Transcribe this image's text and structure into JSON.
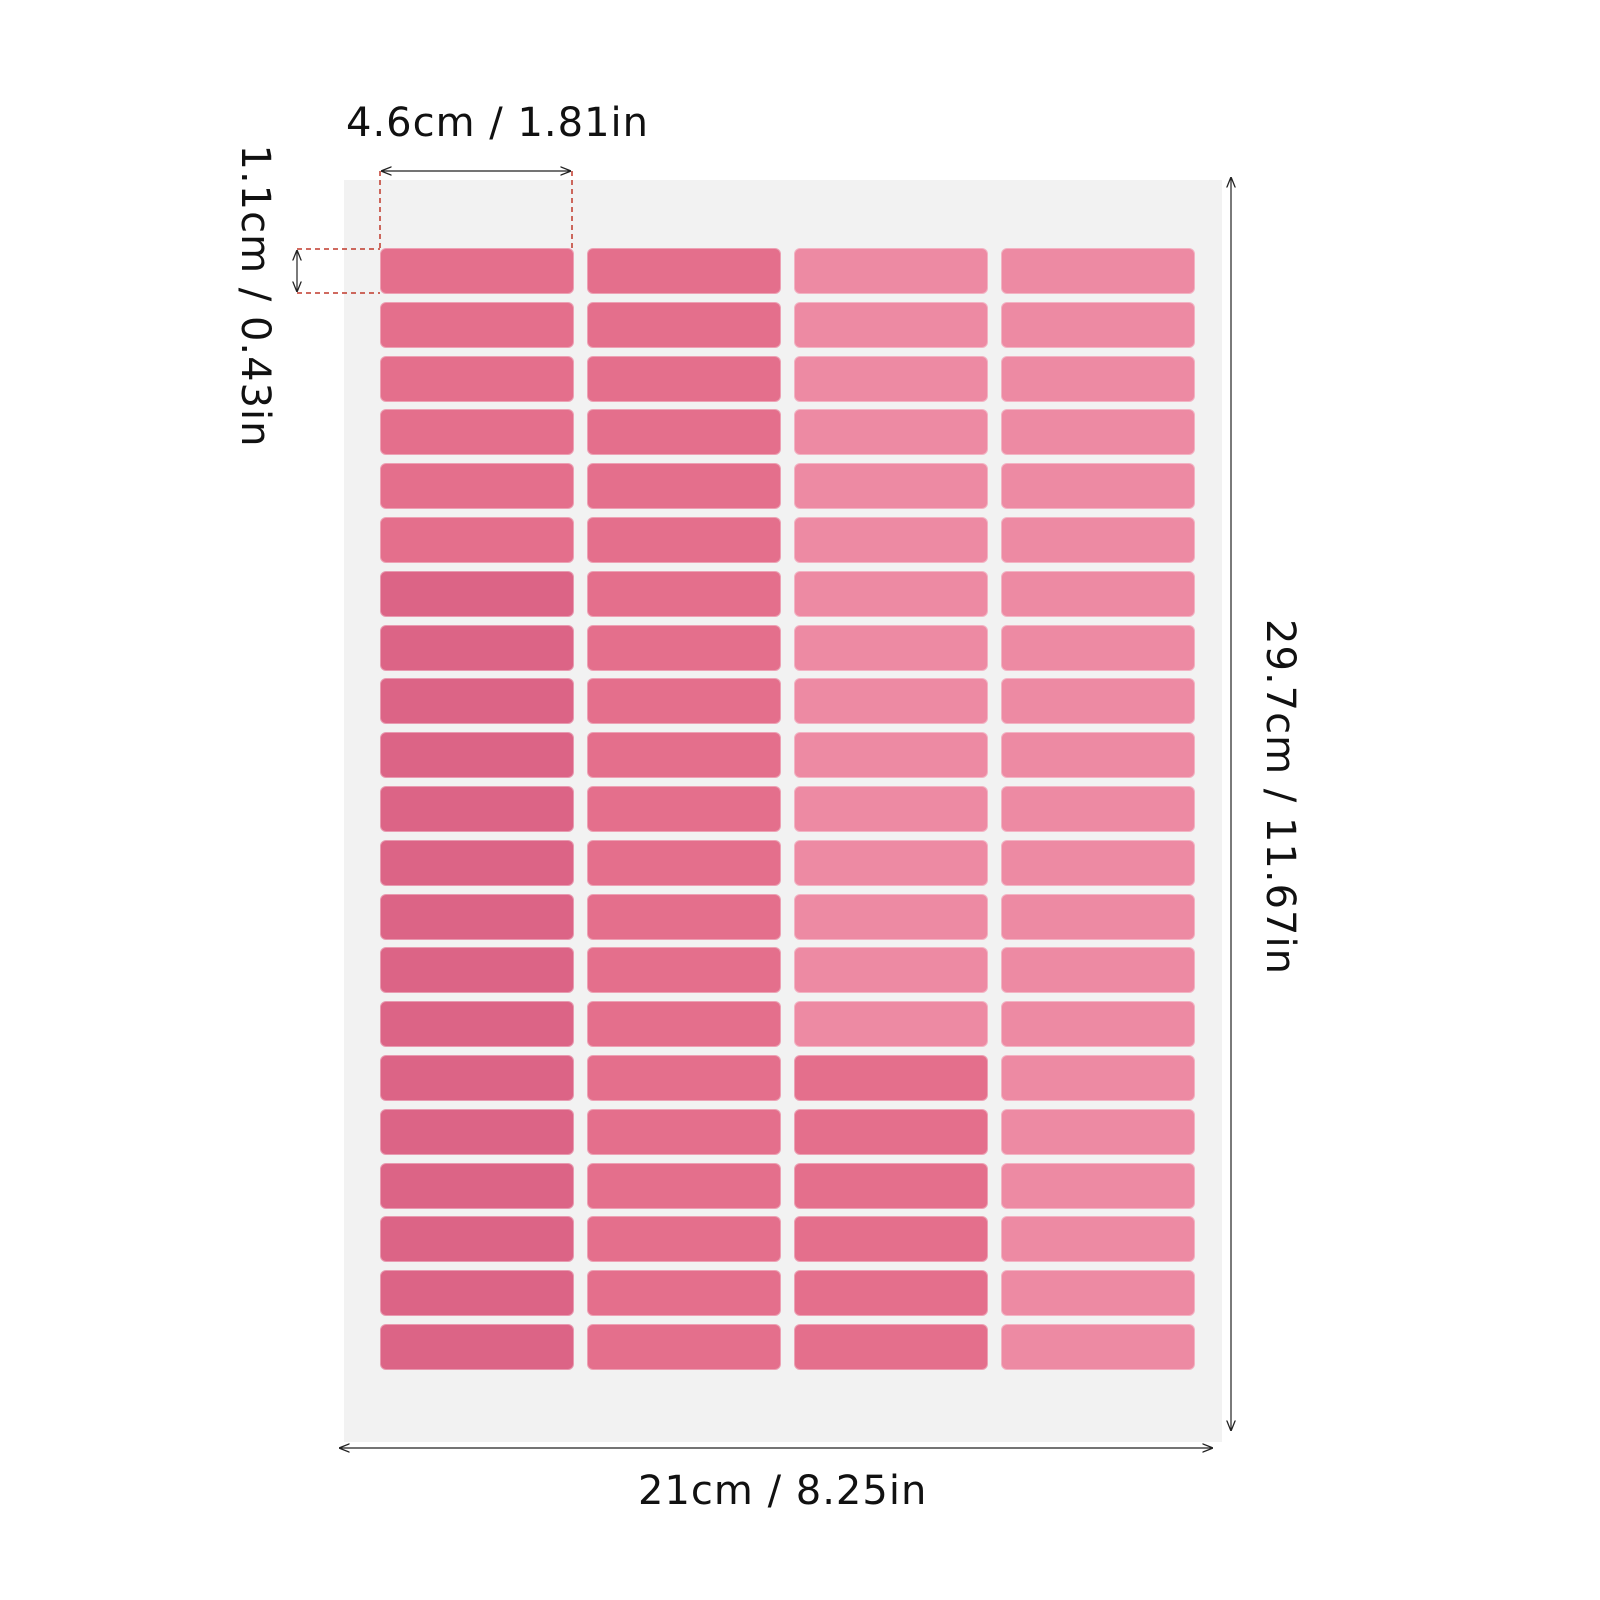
{
  "dimensions": {
    "label_width": "4.6cm / 1.81in",
    "label_height": "1.1cm / 0.43in",
    "sheet_width": "21cm / 8.25in",
    "sheet_height": "29.7cm / 11.67in"
  },
  "label_sheet": {
    "columns": 4,
    "rows": 21,
    "label_color": "#e46f8c",
    "label_color_light": "#ed8aa3",
    "label_color_dark": "#dc6486",
    "sheet_color": "#f2f2f2"
  },
  "colors": {
    "dimension_line": "#222222",
    "guide_line": "#c0392b"
  }
}
